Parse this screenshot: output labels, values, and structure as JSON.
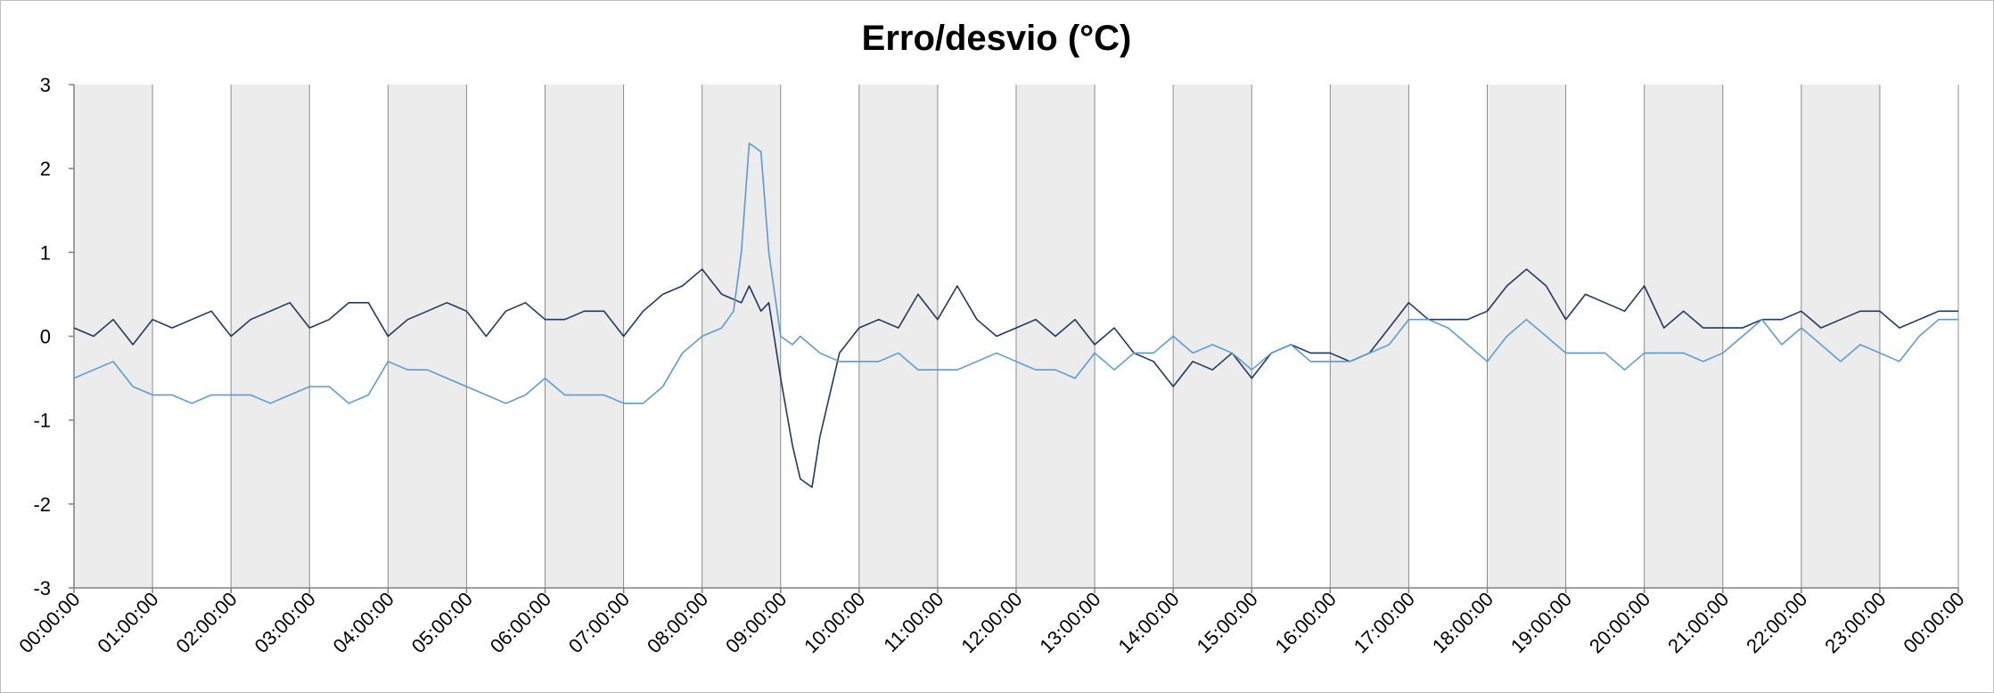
{
  "chart_data": {
    "type": "line",
    "title": "Erro/desvio (°C)",
    "ylim": [
      -3,
      3
    ],
    "y_ticks": [
      "-3",
      "-2",
      "-1",
      "0",
      "1",
      "2",
      "3"
    ],
    "x_ticks": [
      "00:00:00",
      "01:00:00",
      "02:00:00",
      "03:00:00",
      "04:00:00",
      "05:00:00",
      "06:00:00",
      "07:00:00",
      "08:00:00",
      "09:00:00",
      "10:00:00",
      "11:00:00",
      "12:00:00",
      "13:00:00",
      "14:00:00",
      "15:00:00",
      "16:00:00",
      "17:00:00",
      "18:00:00",
      "19:00:00",
      "20:00:00",
      "21:00:00",
      "22:00:00",
      "23:00:00",
      "00:00:00"
    ],
    "shaded_hours": "alternate hours shaded grey, starting 00:00:00",
    "grid": "vertical gridlines at each hour",
    "x_unit": "hours since 00:00:00",
    "series": [
      {
        "color": "#1f3864",
        "x": [
          0,
          0.25,
          0.5,
          0.75,
          1,
          1.25,
          1.5,
          1.75,
          2,
          2.25,
          2.5,
          2.75,
          3,
          3.25,
          3.5,
          3.75,
          4,
          4.25,
          4.5,
          4.75,
          5,
          5.25,
          5.5,
          5.75,
          6,
          6.25,
          6.5,
          6.75,
          7,
          7.25,
          7.5,
          7.75,
          8,
          8.25,
          8.5,
          8.6,
          8.75,
          8.85,
          9,
          9.15,
          9.25,
          9.4,
          9.5,
          9.75,
          10,
          10.25,
          10.5,
          10.75,
          11,
          11.25,
          11.5,
          11.75,
          12,
          12.25,
          12.5,
          12.75,
          13,
          13.25,
          13.5,
          13.75,
          14,
          14.25,
          14.5,
          14.75,
          15,
          15.25,
          15.5,
          15.75,
          16,
          16.25,
          16.5,
          16.75,
          17,
          17.25,
          17.5,
          17.75,
          18,
          18.25,
          18.5,
          18.75,
          19,
          19.25,
          19.5,
          19.75,
          20,
          20.25,
          20.5,
          20.75,
          21,
          21.25,
          21.5,
          21.75,
          22,
          22.25,
          22.5,
          22.75,
          23,
          23.25,
          23.5,
          23.75,
          24
        ],
        "values": [
          0.1,
          0.0,
          0.2,
          -0.1,
          0.2,
          0.1,
          0.2,
          0.3,
          0.0,
          0.2,
          0.3,
          0.4,
          0.1,
          0.2,
          0.4,
          0.4,
          0.0,
          0.2,
          0.3,
          0.4,
          0.3,
          0.0,
          0.3,
          0.4,
          0.2,
          0.2,
          0.3,
          0.3,
          0.0,
          0.3,
          0.5,
          0.6,
          0.8,
          0.5,
          0.4,
          0.6,
          0.3,
          0.4,
          -0.5,
          -1.3,
          -1.7,
          -1.8,
          -1.2,
          -0.2,
          0.1,
          0.2,
          0.1,
          0.5,
          0.2,
          0.6,
          0.2,
          0.0,
          0.1,
          0.2,
          0.0,
          0.2,
          -0.1,
          0.1,
          -0.2,
          -0.3,
          -0.6,
          -0.3,
          -0.4,
          -0.2,
          -0.5,
          -0.2,
          -0.1,
          -0.2,
          -0.2,
          -0.3,
          -0.2,
          0.1,
          0.4,
          0.2,
          0.2,
          0.2,
          0.3,
          0.6,
          0.8,
          0.6,
          0.2,
          0.5,
          0.4,
          0.3,
          0.6,
          0.1,
          0.3,
          0.1,
          0.1,
          0.1,
          0.2,
          0.2,
          0.3,
          0.1,
          0.2,
          0.3,
          0.3,
          0.1,
          0.2,
          0.3,
          0.3
        ]
      },
      {
        "color": "#5b9bd5",
        "x": [
          0,
          0.25,
          0.5,
          0.75,
          1,
          1.25,
          1.5,
          1.75,
          2,
          2.25,
          2.5,
          2.75,
          3,
          3.25,
          3.5,
          3.75,
          4,
          4.25,
          4.5,
          4.75,
          5,
          5.25,
          5.5,
          5.75,
          6,
          6.25,
          6.5,
          6.75,
          7,
          7.25,
          7.5,
          7.75,
          8,
          8.25,
          8.4,
          8.5,
          8.6,
          8.75,
          8.85,
          9,
          9.15,
          9.25,
          9.5,
          9.75,
          10,
          10.25,
          10.5,
          10.75,
          11,
          11.25,
          11.5,
          11.75,
          12,
          12.25,
          12.5,
          12.75,
          13,
          13.25,
          13.5,
          13.75,
          14,
          14.25,
          14.5,
          14.75,
          15,
          15.25,
          15.5,
          15.75,
          16,
          16.25,
          16.5,
          16.75,
          17,
          17.25,
          17.5,
          17.75,
          18,
          18.25,
          18.5,
          18.75,
          19,
          19.25,
          19.5,
          19.75,
          20,
          20.25,
          20.5,
          20.75,
          21,
          21.25,
          21.5,
          21.75,
          22,
          22.25,
          22.5,
          22.75,
          23,
          23.25,
          23.5,
          23.75,
          24
        ],
        "values": [
          -0.5,
          -0.4,
          -0.3,
          -0.6,
          -0.7,
          -0.7,
          -0.8,
          -0.7,
          -0.7,
          -0.7,
          -0.8,
          -0.7,
          -0.6,
          -0.6,
          -0.8,
          -0.7,
          -0.3,
          -0.4,
          -0.4,
          -0.5,
          -0.6,
          -0.7,
          -0.8,
          -0.7,
          -0.5,
          -0.7,
          -0.7,
          -0.7,
          -0.8,
          -0.8,
          -0.6,
          -0.2,
          0.0,
          0.1,
          0.3,
          1.0,
          2.3,
          2.2,
          1.0,
          0.0,
          -0.1,
          0.0,
          -0.2,
          -0.3,
          -0.3,
          -0.3,
          -0.2,
          -0.4,
          -0.4,
          -0.4,
          -0.3,
          -0.2,
          -0.3,
          -0.4,
          -0.4,
          -0.5,
          -0.2,
          -0.4,
          -0.2,
          -0.2,
          0.0,
          -0.2,
          -0.1,
          -0.2,
          -0.4,
          -0.2,
          -0.1,
          -0.3,
          -0.3,
          -0.3,
          -0.2,
          -0.1,
          0.2,
          0.2,
          0.1,
          -0.1,
          -0.3,
          0.0,
          0.2,
          0.0,
          -0.2,
          -0.2,
          -0.2,
          -0.4,
          -0.2,
          -0.2,
          -0.2,
          -0.3,
          -0.2,
          0.0,
          0.2,
          -0.1,
          0.1,
          -0.1,
          -0.3,
          -0.1,
          -0.2,
          -0.3,
          0.0,
          0.2,
          0.2
        ]
      }
    ]
  }
}
